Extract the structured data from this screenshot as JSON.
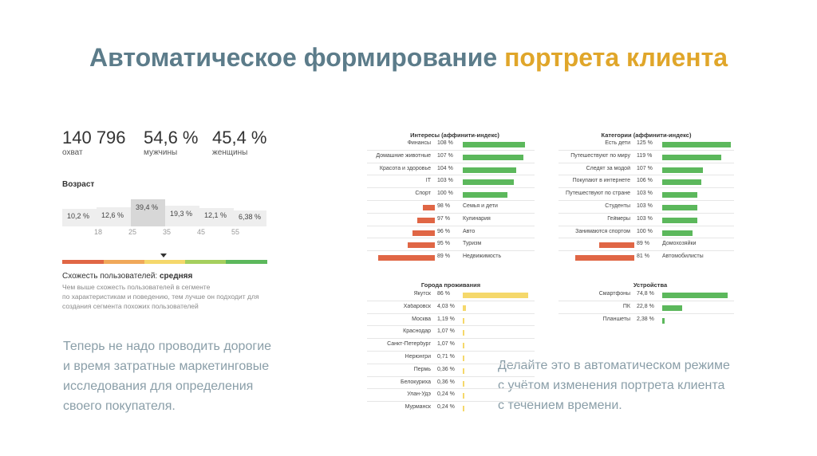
{
  "title": {
    "part1": "Автоматическое формирование",
    "part2": "портрета клиента"
  },
  "colors": {
    "accent_blue": "#5c7c8a",
    "accent_orange": "#e0a62a",
    "positive": "#5cb85c",
    "negative": "#e06645",
    "neutral": "#f5d86b"
  },
  "stats": [
    {
      "value": "140 796",
      "label": "охват"
    },
    {
      "value": "54,6 %",
      "label": "мужчины"
    },
    {
      "value": "45,4 %",
      "label": "женщины"
    }
  ],
  "age": {
    "heading": "Возраст",
    "buckets": [
      {
        "value": "10,2 %",
        "pct": 10.2
      },
      {
        "value": "12,6 %",
        "pct": 12.6
      },
      {
        "value": "39,4 %",
        "pct": 39.4
      },
      {
        "value": "19,3 %",
        "pct": 19.3
      },
      {
        "value": "12,1 %",
        "pct": 12.1
      },
      {
        "value": "6,38 %",
        "pct": 6.38
      }
    ],
    "ticks": [
      "18",
      "25",
      "35",
      "45",
      "55"
    ]
  },
  "similarity": {
    "label": "Схожесть пользователей:",
    "value": "средняя",
    "desc1": "Чем выше схожесть пользователей в сегменте",
    "desc2": "по характеристикам и поведению, тем лучше он подходит для",
    "desc3": "создания сегмента похожих пользователей"
  },
  "text_left": {
    "line1": "Теперь не надо проводить дорогие",
    "line2": "и время затратные маркетинговые",
    "line3": "исследования для определения",
    "line4": "своего покупателя."
  },
  "text_right": {
    "line1": "Делайте это в автоматическом режиме",
    "line2": "с учётом изменения портрета клиента",
    "line3": "с течением времени."
  },
  "interests": {
    "title": "Интересы (аффинити-индекс)",
    "rows": [
      {
        "label": "Финансы",
        "value": "108 %",
        "index": 108
      },
      {
        "label": "Домашние животные",
        "value": "107 %",
        "index": 107
      },
      {
        "label": "Красота и здоровье",
        "value": "104 %",
        "index": 104
      },
      {
        "label": "IT",
        "value": "103 %",
        "index": 103
      },
      {
        "label": "Спорт",
        "value": "100 %",
        "index": 100
      },
      {
        "label": "Семья и дети",
        "value": "98 %",
        "index": 98
      },
      {
        "label": "Кулинария",
        "value": "97 %",
        "index": 97
      },
      {
        "label": "Авто",
        "value": "96 %",
        "index": 96
      },
      {
        "label": "Туризм",
        "value": "95 %",
        "index": 95
      },
      {
        "label": "Недвижимость",
        "value": "89 %",
        "index": 89
      }
    ]
  },
  "categories": {
    "title": "Категории (аффинити-индекс)",
    "rows": [
      {
        "label": "Есть дети",
        "value": "125 %",
        "index": 125
      },
      {
        "label": "Путешествуют по миру",
        "value": "119 %",
        "index": 119
      },
      {
        "label": "Следят за модой",
        "value": "107 %",
        "index": 107
      },
      {
        "label": "Покупают в интернете",
        "value": "106 %",
        "index": 106
      },
      {
        "label": "Путешествуют по стране",
        "value": "103 %",
        "index": 103
      },
      {
        "label": "Студенты",
        "value": "103 %",
        "index": 103
      },
      {
        "label": "Геймеры",
        "value": "103 %",
        "index": 103
      },
      {
        "label": "Занимаются спортом",
        "value": "100 %",
        "index": 100
      },
      {
        "label": "Домохозяйки",
        "value": "89 %",
        "index": 89
      },
      {
        "label": "Автомобилисты",
        "value": "81 %",
        "index": 81
      }
    ]
  },
  "cities": {
    "title": "Города проживания",
    "rows": [
      {
        "label": "Якутск",
        "value": "86 %",
        "pct": 86
      },
      {
        "label": "Хабаровск",
        "value": "4,03 %",
        "pct": 4.03
      },
      {
        "label": "Москва",
        "value": "1,19 %",
        "pct": 1.19
      },
      {
        "label": "Краснодар",
        "value": "1,07 %",
        "pct": 1.07
      },
      {
        "label": "Санкт-Петербург",
        "value": "1,07 %",
        "pct": 1.07
      },
      {
        "label": "Нерюнгри",
        "value": "0,71 %",
        "pct": 0.71
      },
      {
        "label": "Пермь",
        "value": "0,36 %",
        "pct": 0.36
      },
      {
        "label": "Белокуриха",
        "value": "0,36 %",
        "pct": 0.36
      },
      {
        "label": "Улан-Удэ",
        "value": "0,24 %",
        "pct": 0.24
      },
      {
        "label": "Мурманск",
        "value": "0,24 %",
        "pct": 0.24
      }
    ]
  },
  "devices": {
    "title": "Устройства",
    "rows": [
      {
        "label": "Смартфоны",
        "value": "74,8 %",
        "pct": 74.8
      },
      {
        "label": "ПК",
        "value": "22,8 %",
        "pct": 22.8
      },
      {
        "label": "Планшеты",
        "value": "2,38 %",
        "pct": 2.38
      }
    ]
  }
}
